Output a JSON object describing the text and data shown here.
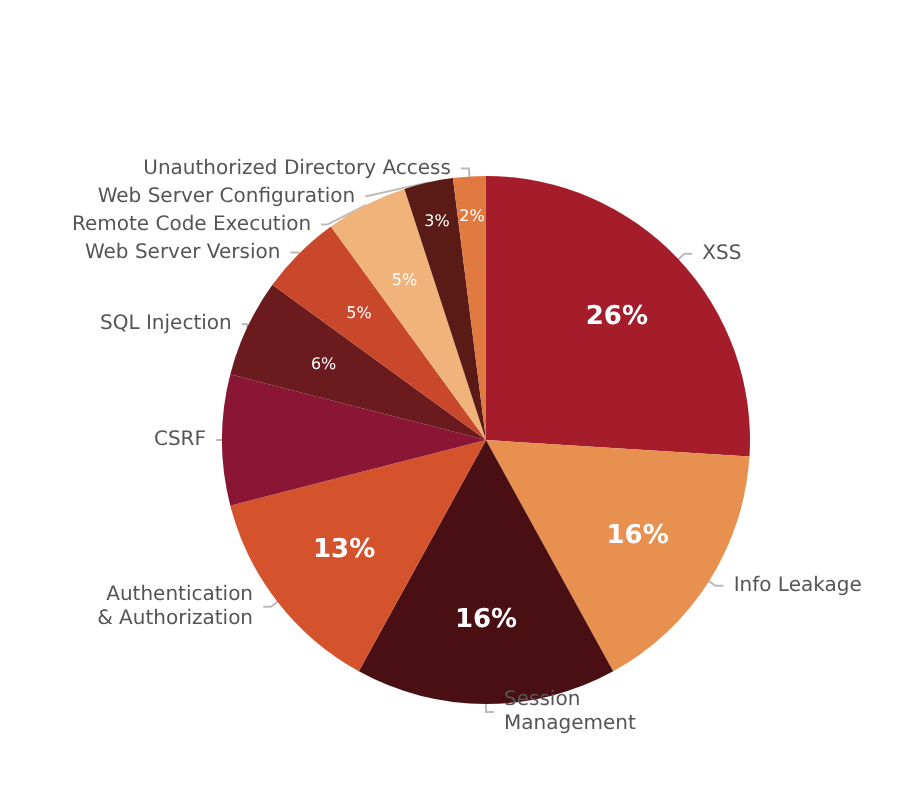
{
  "chart_data": {
    "type": "pie",
    "categories": [
      "XSS",
      "Info Leakage",
      "Session\nManagement",
      "Authentication\n& Authorization",
      "CSRF",
      "SQL Injection",
      "Web Server Version",
      "Remote Code Execution",
      "Web Server Configuration",
      "Unauthorized Directory Access"
    ],
    "values": [
      26,
      16,
      16,
      13,
      8,
      6,
      5,
      5,
      3,
      2
    ],
    "value_labels": [
      "26%",
      "16%",
      "16%",
      "13%",
      null,
      "6%",
      "5%",
      "5%",
      "3%",
      "2%"
    ],
    "colors": [
      "#a51d2a",
      "#e8904f",
      "#4a0f12",
      "#d4532c",
      "#8a1535",
      "#6b1a1e",
      "#c9472a",
      "#f0b47a",
      "#5a1a15",
      "#e07a40"
    ],
    "legend": false
  }
}
